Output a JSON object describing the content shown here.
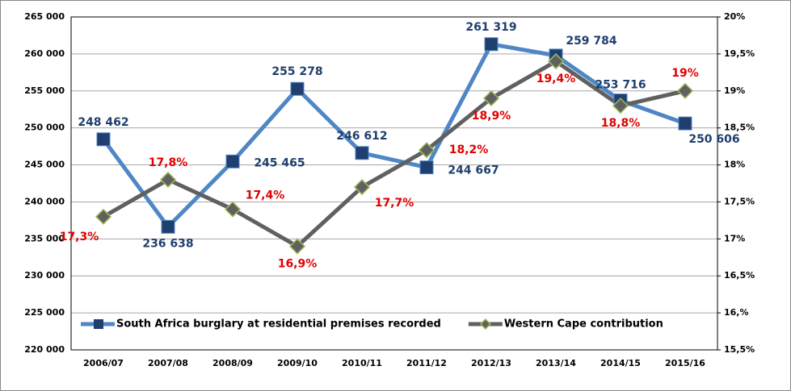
{
  "chart_data": {
    "type": "line",
    "categories": [
      "2006/07",
      "2007/08",
      "2008/09",
      "2009/10",
      "2010/11",
      "2011/12",
      "2012/13",
      "2013/14",
      "2014/15",
      "2015/16"
    ],
    "series": [
      {
        "name": "South Africa burglary at residential premises recorded",
        "color": "#4f86c6",
        "marker_color": "#1f3f6e",
        "label_color": "#1f3f6e",
        "values": [
          248462,
          236638,
          245465,
          255278,
          246612,
          244667,
          261319,
          259784,
          253716,
          250606
        ],
        "value_labels": [
          "248 462",
          "236 638",
          "245 465",
          "255 278",
          "246 612",
          "244 667",
          "261 319",
          "259 784",
          "253 716",
          "250 606"
        ]
      },
      {
        "name": "Western Cape contribution",
        "color": "#606060",
        "marker_color": "#9bbb59",
        "label_color": "#e00000",
        "axis": "y2",
        "values": [
          17.3,
          17.8,
          17.4,
          16.9,
          17.7,
          18.2,
          18.9,
          19.4,
          18.8,
          19
        ],
        "value_labels": [
          "17,3%",
          "17,8%",
          "17,4%",
          "16,9%",
          "17,7%",
          "18,2%",
          "18,9%",
          "19,4%",
          "18,8%",
          "19%"
        ]
      }
    ],
    "ylim": [
      220000,
      265000
    ],
    "yticks": [
      {
        "value": 220000,
        "label": "220 000"
      },
      {
        "value": 225000,
        "label": "225 000"
      },
      {
        "value": 230000,
        "label": "230 000"
      },
      {
        "value": 235000,
        "label": "235 000"
      },
      {
        "value": 240000,
        "label": "240 000"
      },
      {
        "value": 245000,
        "label": "245 000"
      },
      {
        "value": 250000,
        "label": "250 000"
      },
      {
        "value": 255000,
        "label": "255 000"
      },
      {
        "value": 260000,
        "label": "260 000"
      },
      {
        "value": 265000,
        "label": "265 000"
      }
    ],
    "y2lim": [
      15.5,
      20
    ],
    "y2ticks": [
      {
        "value": 15.5,
        "label": "15,5%"
      },
      {
        "value": 16,
        "label": "16,%"
      },
      {
        "value": 16.5,
        "label": "16,5%"
      },
      {
        "value": 17,
        "label": "17%"
      },
      {
        "value": 17.5,
        "label": "17,5%"
      },
      {
        "value": 18,
        "label": "18%"
      },
      {
        "value": 18.5,
        "label": "18,5%"
      },
      {
        "value": 19,
        "label": "19%"
      },
      {
        "value": 19.5,
        "label": "19,5%"
      },
      {
        "value": 20,
        "label": "20%"
      }
    ],
    "grid": true,
    "legend": "bottom"
  }
}
